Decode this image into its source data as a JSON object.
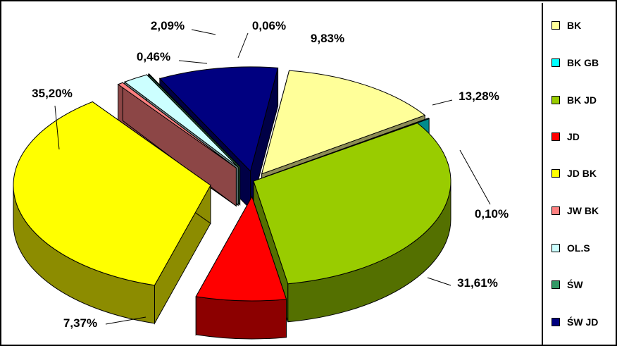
{
  "chart_data": {
    "type": "pie",
    "title": "",
    "legend_position": "right",
    "series": [
      {
        "name": "BK",
        "value": 13.28,
        "label": "13,28%",
        "color": "#FFFF99"
      },
      {
        "name": "BK GB",
        "value": 0.1,
        "label": "0,10%",
        "color": "#00FFFF"
      },
      {
        "name": "BK JD",
        "value": 31.61,
        "label": "31,61%",
        "color": "#99CC00"
      },
      {
        "name": "JD",
        "value": 7.37,
        "label": "7,37%",
        "color": "#FF0000"
      },
      {
        "name": "JD BK",
        "value": 35.2,
        "label": "35,20%",
        "color": "#FFFF00"
      },
      {
        "name": "JW BK",
        "value": 0.46,
        "label": "0,46%",
        "color": "#FF8080"
      },
      {
        "name": "OL.S",
        "value": 2.09,
        "label": "2,09%",
        "color": "#CCFFFF"
      },
      {
        "name": "ŚW",
        "value": 0.06,
        "label": "0,06%",
        "color": "#339966"
      },
      {
        "name": "ŚW JD",
        "value": 9.83,
        "label": "9,83%",
        "color": "#000080"
      }
    ]
  }
}
